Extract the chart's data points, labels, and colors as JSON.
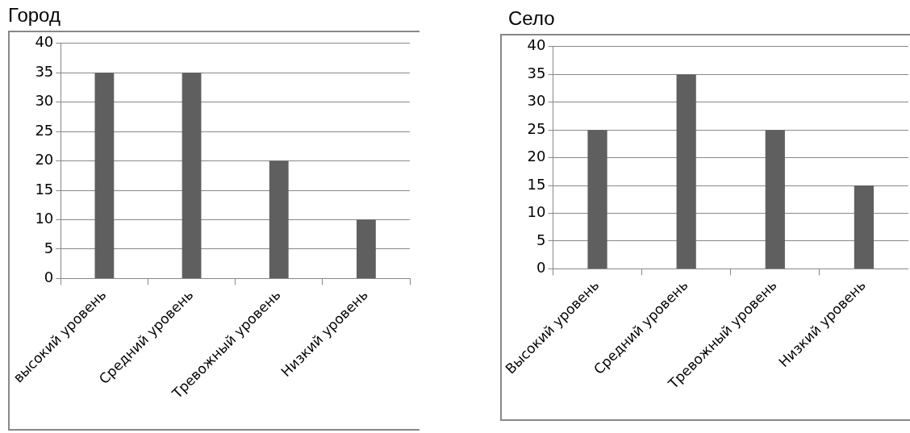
{
  "chart_data": [
    {
      "type": "bar",
      "title": "Город",
      "categories": [
        "высокий уровень",
        "Средний уровень",
        "Тревожный уровень",
        "Низкий уровень"
      ],
      "values": [
        35,
        35,
        20,
        10
      ],
      "color": "#5f5f5f",
      "ylim": [
        0,
        40
      ],
      "yticks": [
        0,
        5,
        10,
        15,
        20,
        25,
        30,
        35,
        40
      ],
      "grid": "y"
    },
    {
      "type": "bar",
      "title": "Село",
      "categories": [
        "Высокий уровень",
        "Средний уровень",
        "Тревожный уровень",
        "Низкий уровень"
      ],
      "values": [
        25,
        35,
        25,
        15
      ],
      "color": "#5f5f5f",
      "ylim": [
        0,
        40
      ],
      "yticks": [
        0,
        5,
        10,
        15,
        20,
        25,
        30,
        35,
        40
      ],
      "grid": "y"
    }
  ]
}
